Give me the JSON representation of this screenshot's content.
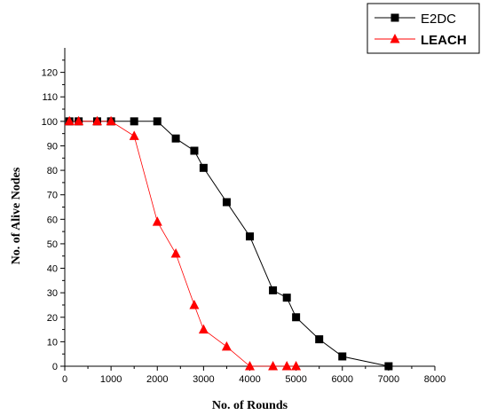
{
  "chart_data": {
    "type": "line",
    "title": "",
    "xlabel": "No. of Rounds",
    "ylabel": "No. of Alive Nodes",
    "xlim": [
      0,
      8000
    ],
    "ylim": [
      0,
      130
    ],
    "x_ticks": [
      0,
      1000,
      2000,
      3000,
      4000,
      5000,
      6000,
      7000,
      8000
    ],
    "y_ticks": [
      0,
      10,
      20,
      30,
      40,
      50,
      60,
      70,
      80,
      90,
      100,
      110,
      120
    ],
    "grid": false,
    "legend_position": "top-right",
    "series": [
      {
        "name": "E2DC",
        "color": "#000000",
        "marker": "square",
        "x": [
          100,
          300,
          700,
          1000,
          1500,
          2000,
          2400,
          2800,
          3000,
          3500,
          4000,
          4500,
          4800,
          5000,
          5500,
          6000,
          7000
        ],
        "y": [
          100,
          100,
          100,
          100,
          100,
          100,
          93,
          88,
          81,
          67,
          53,
          31,
          28,
          20,
          11,
          4,
          0
        ]
      },
      {
        "name": "LEACH",
        "color": "#ff0000",
        "marker": "triangle",
        "x": [
          100,
          300,
          700,
          1000,
          1500,
          2000,
          2400,
          2800,
          3000,
          3500,
          4000,
          4500,
          4800,
          5000
        ],
        "y": [
          100,
          100,
          100,
          100,
          94,
          59,
          46,
          25,
          15,
          8,
          0,
          0,
          0,
          0
        ]
      }
    ]
  }
}
